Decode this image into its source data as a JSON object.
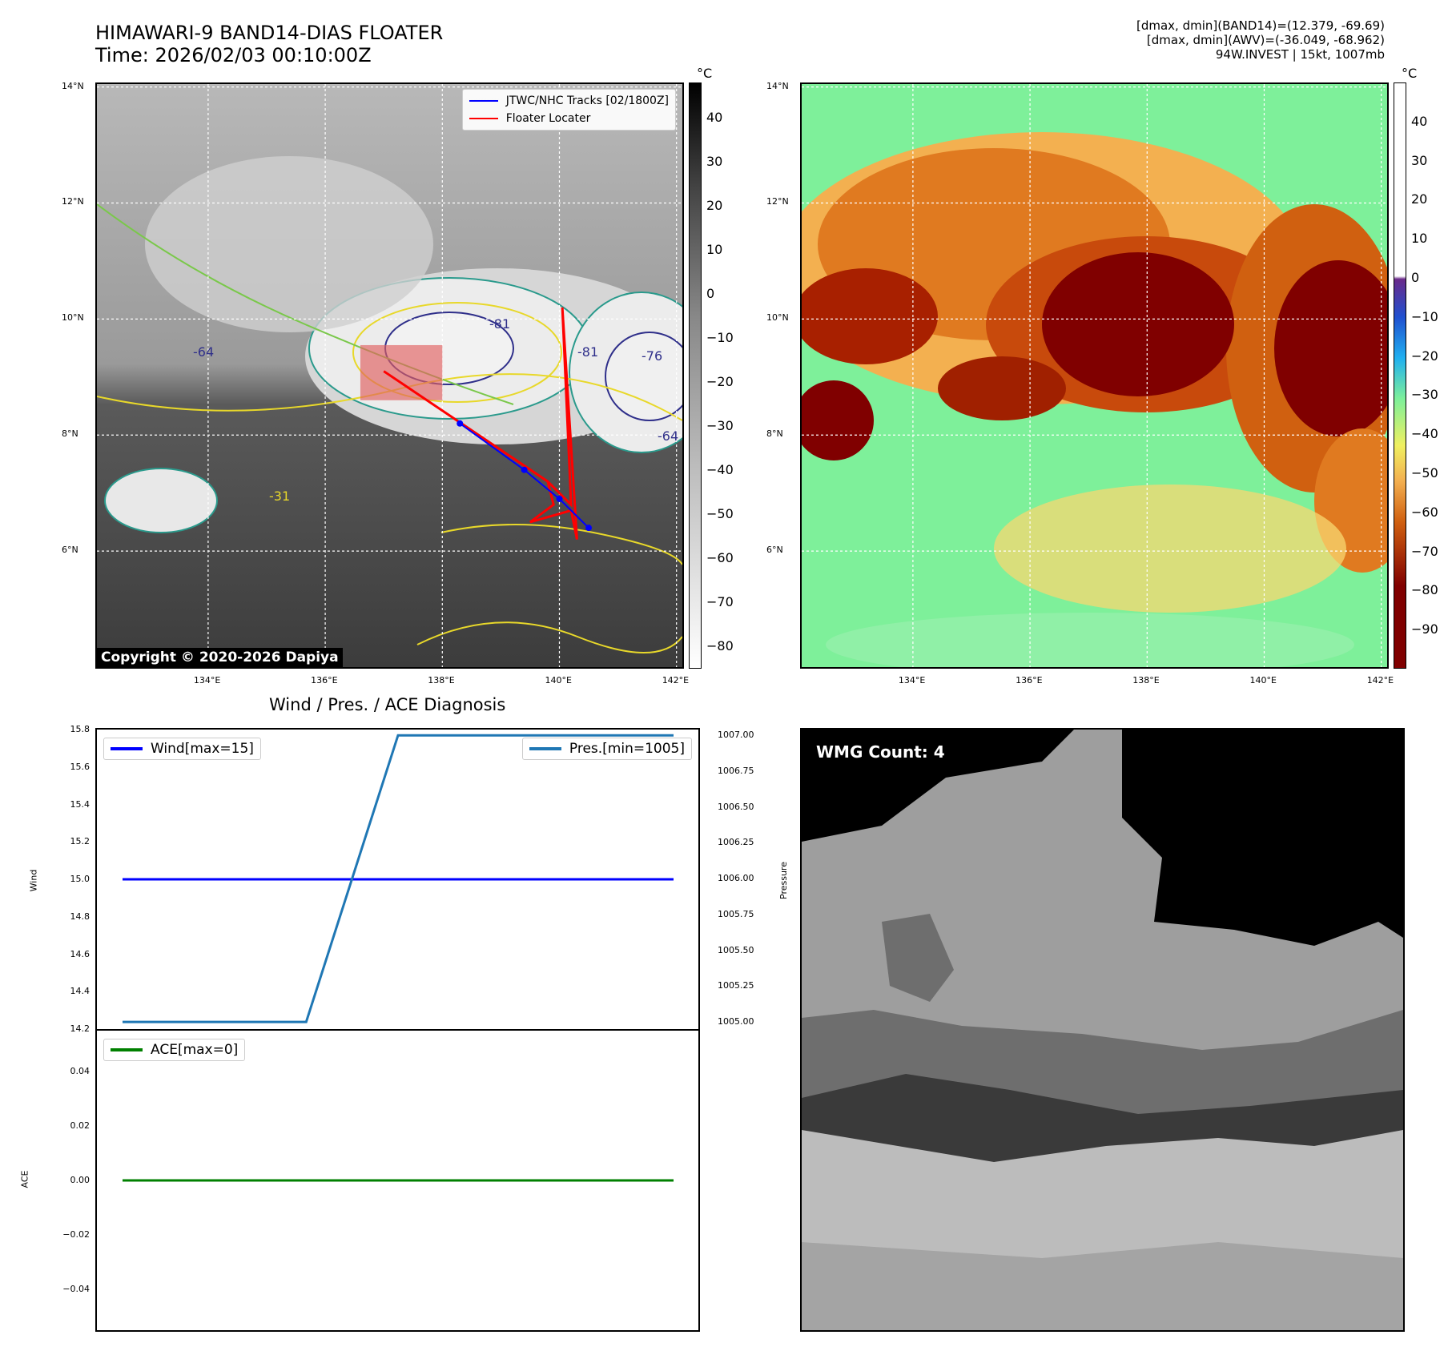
{
  "header": {
    "title_line1": "HIMAWARI-9 BAND14-DIAS FLOATER",
    "title_line2": "Time: 2026/02/03 00:10:00Z",
    "info_line1": "[dmax, dmin](BAND14)=(12.379, -69.69)",
    "info_line2": "[dmax, dmin](AWV)=(-36.049, -68.962)",
    "info_line3": "94W.INVEST | 15kt, 1007mb"
  },
  "map": {
    "lat_labels": [
      "14°N",
      "12°N",
      "10°N",
      "8°N",
      "6°N"
    ],
    "lat_values": [
      14,
      12,
      10,
      8,
      6
    ],
    "lon_labels": [
      "134°E",
      "136°E",
      "138°E",
      "140°E",
      "142°E"
    ],
    "lon_values": [
      134,
      136,
      138,
      140,
      142
    ],
    "lon_range": [
      132.1,
      142.1
    ],
    "lat_range": [
      4.0,
      14.05
    ],
    "contour_labels": [
      "-81",
      "-76",
      "-64",
      "-31"
    ]
  },
  "ir_panel": {
    "legend": {
      "track_label": "JTWC/NHC Tracks [02/1800Z]",
      "floater_label": "Floater Locater"
    },
    "copyright": "Copyright © 2020-2026 Dapiya",
    "colorbar_unit": "°C",
    "colorbar_ticks": [
      "40",
      "30",
      "20",
      "10",
      "0",
      "−10",
      "−20",
      "−30",
      "−40",
      "−50",
      "−60",
      "−70",
      "−80"
    ],
    "colorbar_range": [
      -85,
      48
    ],
    "colors": {
      "track": "#0000ff",
      "floater": "#ff0000",
      "box": "#e06060"
    }
  },
  "awv_panel": {
    "colorbar_unit": "°C",
    "colorbar_ticks": [
      "40",
      "30",
      "20",
      "10",
      "0",
      "−10",
      "−20",
      "−30",
      "−40",
      "−50",
      "−60",
      "−70",
      "−80",
      "−90"
    ],
    "colorbar_range": [
      -100,
      50
    ]
  },
  "diagnosis": {
    "title": "Wind / Pres. / ACE Diagnosis",
    "wind_ylabel": "Wind",
    "pres_ylabel": "Pressure",
    "ace_ylabel": "ACE",
    "wind_legend": "Wind[max=15]",
    "pres_legend": "Pres.[min=1005]",
    "ace_legend": "ACE[max=0]",
    "wind_ticks": [
      "15.8",
      "15.6",
      "15.4",
      "15.2",
      "15.0",
      "14.8",
      "14.6",
      "14.4",
      "14.2"
    ],
    "pres_ticks": [
      "1007.00",
      "1006.75",
      "1006.50",
      "1006.25",
      "1006.00",
      "1005.75",
      "1005.50",
      "1005.25",
      "1005.00"
    ],
    "ace_ticks": [
      "0.04",
      "0.02",
      "0.00",
      "−0.02",
      "−0.04"
    ]
  },
  "wmg_panel": {
    "label": "WMG Count: 4"
  },
  "chart_data": [
    {
      "type": "line",
      "name": "Wind",
      "x": [
        0,
        1,
        2,
        3,
        4,
        5,
        6
      ],
      "series": [
        {
          "name": "Wind[max=15]",
          "values": [
            15,
            15,
            15,
            15,
            15,
            15,
            15
          ],
          "color": "#0000ff"
        }
      ],
      "ylim": [
        14.2,
        15.8
      ]
    },
    {
      "type": "line",
      "name": "Pressure",
      "x": [
        0,
        1,
        2,
        3,
        4,
        5,
        6
      ],
      "series": [
        {
          "name": "Pres.[min=1005]",
          "values": [
            1005,
            1005,
            1005,
            1007,
            1007,
            1007,
            1007
          ],
          "color": "#1f77b4"
        }
      ],
      "ylim": [
        1004.95,
        1007.04
      ]
    },
    {
      "type": "line",
      "name": "ACE",
      "x": [
        0,
        1,
        2,
        3,
        4,
        5,
        6
      ],
      "series": [
        {
          "name": "ACE[max=0]",
          "values": [
            0,
            0,
            0,
            0,
            0,
            0,
            0
          ],
          "color": "#008000"
        }
      ],
      "ylim": [
        -0.055,
        0.055
      ]
    },
    {
      "type": "line",
      "name": "JTWC/NHC Tracks [02/1800Z]",
      "x": [
        138.3,
        139.4,
        140.0,
        140.5
      ],
      "series": [
        {
          "name": "JTWC/NHC Tracks [02/1800Z]",
          "values": [
            8.2,
            7.4,
            6.9,
            6.4
          ]
        }
      ]
    }
  ]
}
